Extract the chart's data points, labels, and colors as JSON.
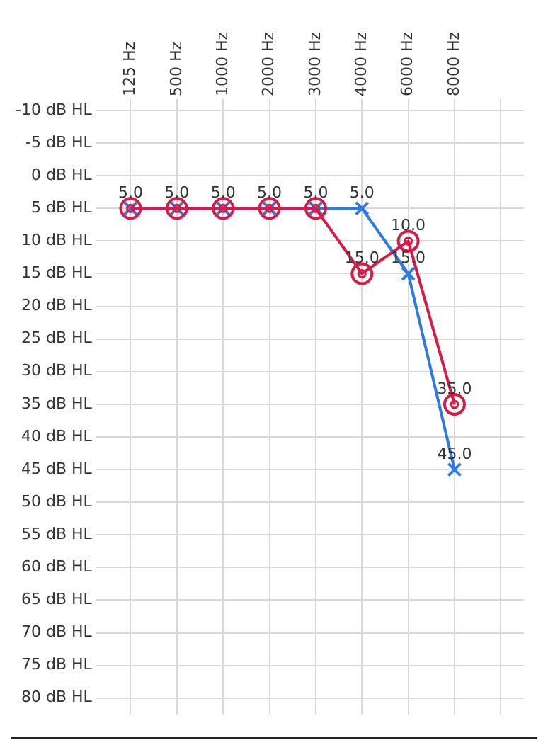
{
  "chart_data": {
    "type": "line",
    "categories": [
      "125 Hz",
      "500 Hz",
      "1000 Hz",
      "2000 Hz",
      "3000 Hz",
      "4000 Hz",
      "6000 Hz",
      "8000 Hz",
      null
    ],
    "series": [
      {
        "color": "#d81b46",
        "marker": "circle",
        "values": [
          5,
          5,
          5,
          5,
          5,
          15,
          10,
          35,
          null
        ],
        "value_labels": [
          null,
          null,
          null,
          null,
          null,
          "15.0",
          "10.0",
          "35.0",
          null
        ]
      },
      {
        "color": "#2f7ae0",
        "marker": "cross",
        "values": [
          5,
          5,
          5,
          5,
          5,
          5,
          15,
          45,
          null
        ],
        "value_labels": [
          "5.0",
          "5.0",
          "5.0",
          "5.0",
          "5.0",
          "5.0",
          "15.0",
          "45.0",
          null
        ]
      }
    ],
    "ylim": [
      82.5,
      -10
    ],
    "yticks": [
      {
        "value": -10,
        "label": "-10 dB HL"
      },
      {
        "value": -5,
        "label": "-5 dB HL"
      },
      {
        "value": 0,
        "label": "0 dB HL"
      },
      {
        "value": 5,
        "label": "5 dB HL"
      },
      {
        "value": 10,
        "label": "10 dB HL"
      },
      {
        "value": 15,
        "label": "15 dB HL"
      },
      {
        "value": 20,
        "label": "20 dB HL"
      },
      {
        "value": 25,
        "label": "25 dB HL"
      },
      {
        "value": 30,
        "label": "30 dB HL"
      },
      {
        "value": 35,
        "label": "35 dB HL"
      },
      {
        "value": 40,
        "label": "40 dB HL"
      },
      {
        "value": 45,
        "label": "45 dB HL"
      },
      {
        "value": 50,
        "label": "50 dB HL"
      },
      {
        "value": 55,
        "label": "55 dB HL"
      },
      {
        "value": 60,
        "label": "60 dB HL"
      },
      {
        "value": 65,
        "label": "65 dB HL"
      },
      {
        "value": 70,
        "label": "70 dB HL"
      },
      {
        "value": 75,
        "label": "75 dB HL"
      },
      {
        "value": 80,
        "label": "80 dB HL"
      }
    ],
    "grid": true,
    "legend": false,
    "line_style": "solid"
  }
}
